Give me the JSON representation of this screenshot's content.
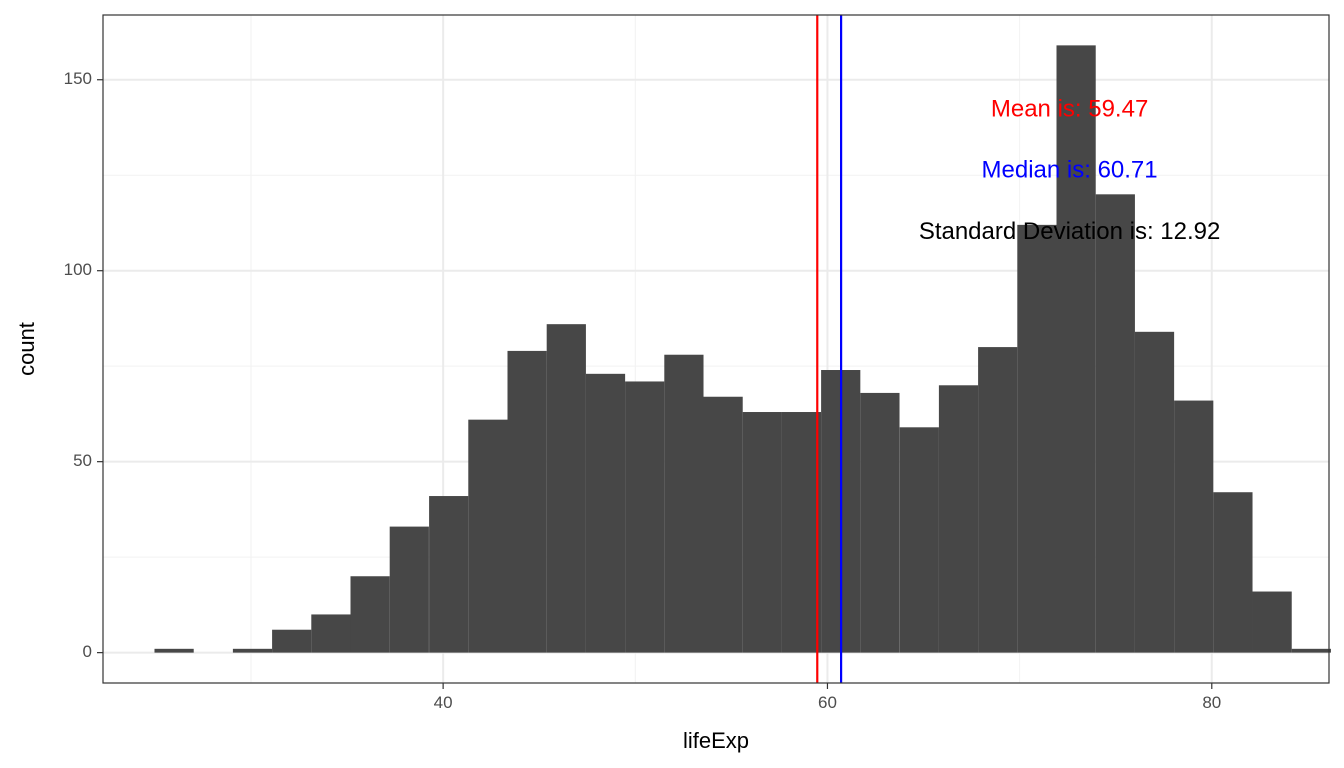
{
  "chart_data": {
    "type": "histogram",
    "xlabel": "lifeExp",
    "ylabel": "count",
    "xlim": [
      22.3,
      86.1
    ],
    "ylim": [
      -7.95,
      166.95
    ],
    "x_ticks": [
      40,
      60,
      80
    ],
    "y_ticks": [
      0,
      50,
      100,
      150
    ],
    "x_minor": [
      30,
      50,
      70
    ],
    "y_minor": [
      25,
      75,
      125
    ],
    "bin_width": 2.041,
    "bins": [
      {
        "x": 26.0,
        "count": 1
      },
      {
        "x": 28.04,
        "count": 0
      },
      {
        "x": 30.08,
        "count": 1
      },
      {
        "x": 32.12,
        "count": 6
      },
      {
        "x": 34.16,
        "count": 10
      },
      {
        "x": 36.2,
        "count": 20
      },
      {
        "x": 38.24,
        "count": 33
      },
      {
        "x": 40.29,
        "count": 41
      },
      {
        "x": 42.33,
        "count": 61
      },
      {
        "x": 44.37,
        "count": 79
      },
      {
        "x": 46.41,
        "count": 86
      },
      {
        "x": 48.45,
        "count": 73
      },
      {
        "x": 50.49,
        "count": 71
      },
      {
        "x": 52.53,
        "count": 78
      },
      {
        "x": 54.57,
        "count": 67
      },
      {
        "x": 56.61,
        "count": 63
      },
      {
        "x": 58.65,
        "count": 63
      },
      {
        "x": 60.69,
        "count": 74
      },
      {
        "x": 62.73,
        "count": 68
      },
      {
        "x": 64.78,
        "count": 59
      },
      {
        "x": 66.82,
        "count": 70
      },
      {
        "x": 68.86,
        "count": 80
      },
      {
        "x": 70.9,
        "count": 112
      },
      {
        "x": 72.94,
        "count": 159
      },
      {
        "x": 74.98,
        "count": 120
      },
      {
        "x": 77.02,
        "count": 84
      },
      {
        "x": 79.06,
        "count": 66
      },
      {
        "x": 81.1,
        "count": 42
      },
      {
        "x": 83.14,
        "count": 16
      },
      {
        "x": 85.18,
        "count": 1
      }
    ],
    "bar_color": "#474747",
    "vlines": [
      {
        "name": "mean",
        "x": 59.47,
        "color": "#ff0000"
      },
      {
        "name": "median",
        "x": 60.71,
        "color": "#0000ff"
      }
    ],
    "annotations": [
      {
        "text": "Mean is: 59.47",
        "x": 72.6,
        "y": 142,
        "color": "#ff0000"
      },
      {
        "text": "Median is: 60.71",
        "x": 72.6,
        "y": 126,
        "color": "#0000ff"
      },
      {
        "text": "Standard Deviation is: 12.92",
        "x": 72.6,
        "y": 110,
        "color": "#000000"
      }
    ],
    "grid": true,
    "legend": "none",
    "theme": "bw"
  }
}
